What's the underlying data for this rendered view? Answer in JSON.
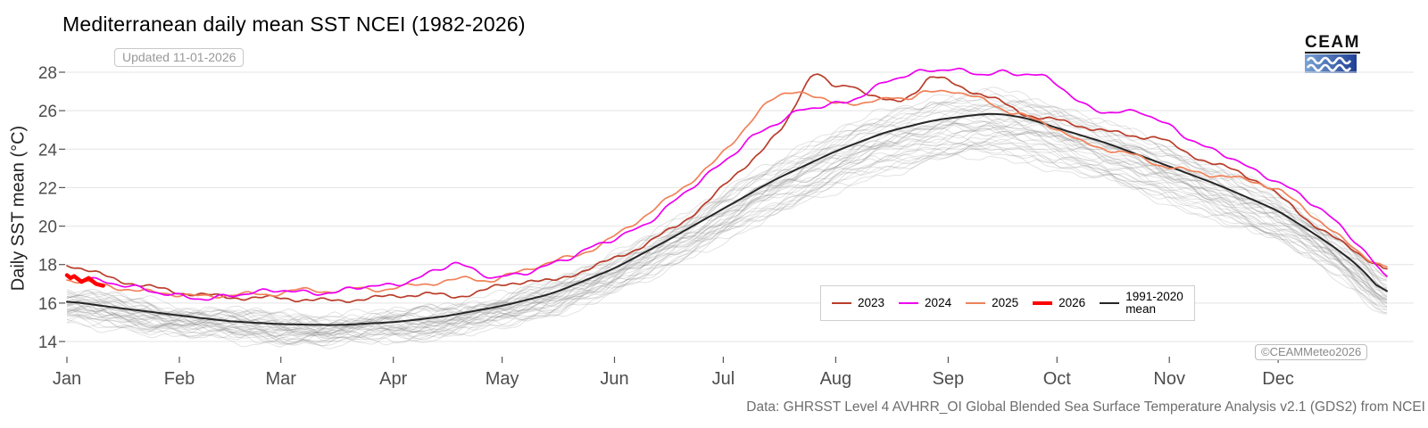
{
  "header": {
    "title": "Mediterranean daily mean SST NCEI (1982-2026)",
    "updated_badge": "Updated 11-01-2026",
    "logo_text": "CEAM"
  },
  "footer": {
    "caption": "Data: GHRSST Level 4 AVHRR_OI Global Blended Sea Surface Temperature Analysis v2.1 (GDS2) from NCEI",
    "copyright_badge": "©CEAMMeteo2026"
  },
  "colors": {
    "grid": "#e4e4e4",
    "tick": "#555555",
    "tick_label": "#4d4d4d",
    "background_years": "#808080",
    "logo_blue_left": "#7aa3d4",
    "logo_blue_right": "#1e3f96"
  },
  "chart_data": {
    "type": "line",
    "title": "Mediterranean daily mean SST NCEI (1982-2026)",
    "xlabel": "",
    "ylabel": "Daily SST mean (°C)",
    "ylim": [
      14,
      28
    ],
    "yticks": [
      14,
      16,
      18,
      20,
      22,
      24,
      26,
      28
    ],
    "x_unit": "day_of_year",
    "xlim_days": [
      1,
      365
    ],
    "grid": "horizontal-only",
    "legend_position": "inside-bottom-right",
    "xticks": {
      "labels": [
        "Jan",
        "Feb",
        "Mar",
        "Apr",
        "May",
        "Jun",
        "Jul",
        "Aug",
        "Sep",
        "Oct",
        "Nov",
        "Dec"
      ],
      "start_days": [
        1,
        32,
        60,
        91,
        121,
        152,
        182,
        213,
        244,
        274,
        305,
        335
      ]
    },
    "background_years": {
      "label": "individual years 1982-2022",
      "count": 41,
      "color": "#808080",
      "opacity": 0.22,
      "spread_below_degC": 2.2,
      "spread_above_degC": 1.3
    },
    "series": [
      {
        "name": "2023",
        "legend_label": "2023",
        "color": "#b93d2a",
        "width": 1.7,
        "points": [
          [
            1,
            18.05
          ],
          [
            8,
            17.6
          ],
          [
            15,
            17.2
          ],
          [
            22,
            16.9
          ],
          [
            32,
            16.55
          ],
          [
            45,
            16.3
          ],
          [
            60,
            16.25
          ],
          [
            75,
            16.1
          ],
          [
            91,
            16.35
          ],
          [
            100,
            16.5
          ],
          [
            108,
            16.3
          ],
          [
            121,
            16.9
          ],
          [
            128,
            17.2
          ],
          [
            135,
            17.1
          ],
          [
            142,
            17.6
          ],
          [
            152,
            18.3
          ],
          [
            160,
            19.0
          ],
          [
            170,
            20.1
          ],
          [
            178,
            21.3
          ],
          [
            186,
            22.8
          ],
          [
            193,
            24.0
          ],
          [
            199,
            25.2
          ],
          [
            204,
            27.2
          ],
          [
            207,
            28.1
          ],
          [
            210,
            27.6
          ],
          [
            213,
            27.1
          ],
          [
            217,
            27.4
          ],
          [
            221,
            27.0
          ],
          [
            225,
            26.6
          ],
          [
            230,
            26.4
          ],
          [
            235,
            27.0
          ],
          [
            239,
            27.8
          ],
          [
            243,
            27.6
          ],
          [
            248,
            27.2
          ],
          [
            254,
            26.8
          ],
          [
            258,
            26.5
          ],
          [
            264,
            25.9
          ],
          [
            270,
            25.6
          ],
          [
            274,
            25.5
          ],
          [
            281,
            25.2
          ],
          [
            288,
            24.9
          ],
          [
            295,
            24.7
          ],
          [
            302,
            24.6
          ],
          [
            309,
            23.9
          ],
          [
            316,
            23.3
          ],
          [
            323,
            22.9
          ],
          [
            330,
            22.3
          ],
          [
            337,
            21.3
          ],
          [
            344,
            20.2
          ],
          [
            351,
            19.3
          ],
          [
            358,
            18.5
          ],
          [
            365,
            17.7
          ]
        ]
      },
      {
        "name": "2024",
        "legend_label": "2024",
        "color": "#ee00ee",
        "width": 1.7,
        "points": [
          [
            1,
            17.45
          ],
          [
            8,
            17.2
          ],
          [
            15,
            17.0
          ],
          [
            25,
            16.6
          ],
          [
            32,
            16.35
          ],
          [
            40,
            16.2
          ],
          [
            48,
            16.45
          ],
          [
            60,
            16.7
          ],
          [
            68,
            16.5
          ],
          [
            75,
            16.55
          ],
          [
            83,
            16.9
          ],
          [
            91,
            16.9
          ],
          [
            98,
            17.3
          ],
          [
            104,
            17.8
          ],
          [
            108,
            18.15
          ],
          [
            113,
            17.7
          ],
          [
            119,
            17.3
          ],
          [
            126,
            17.5
          ],
          [
            133,
            17.9
          ],
          [
            140,
            18.4
          ],
          [
            147,
            19.0
          ],
          [
            154,
            19.5
          ],
          [
            160,
            20.0
          ],
          [
            168,
            21.2
          ],
          [
            175,
            22.3
          ],
          [
            182,
            23.3
          ],
          [
            189,
            24.5
          ],
          [
            196,
            25.3
          ],
          [
            203,
            26.0
          ],
          [
            210,
            26.3
          ],
          [
            216,
            26.4
          ],
          [
            222,
            27.0
          ],
          [
            228,
            27.6
          ],
          [
            233,
            27.9
          ],
          [
            238,
            28.05
          ],
          [
            244,
            28.2
          ],
          [
            249,
            28.0
          ],
          [
            254,
            27.9
          ],
          [
            258,
            28.0
          ],
          [
            263,
            27.9
          ],
          [
            267,
            27.95
          ],
          [
            271,
            27.7
          ],
          [
            275,
            27.3
          ],
          [
            279,
            26.6
          ],
          [
            283,
            26.1
          ],
          [
            287,
            25.95
          ],
          [
            293,
            25.9
          ],
          [
            297,
            26.0
          ],
          [
            301,
            25.6
          ],
          [
            305,
            25.2
          ],
          [
            310,
            24.6
          ],
          [
            316,
            24.0
          ],
          [
            322,
            23.6
          ],
          [
            328,
            22.9
          ],
          [
            334,
            22.4
          ],
          [
            340,
            21.75
          ],
          [
            346,
            21.0
          ],
          [
            351,
            20.2
          ],
          [
            356,
            19.3
          ],
          [
            360,
            18.4
          ],
          [
            363,
            17.7
          ],
          [
            365,
            17.3
          ]
        ]
      },
      {
        "name": "2025",
        "legend_label": "2025",
        "color": "#f0825a",
        "width": 1.7,
        "points": [
          [
            1,
            17.25
          ],
          [
            8,
            17.0
          ],
          [
            15,
            16.8
          ],
          [
            22,
            16.6
          ],
          [
            32,
            16.45
          ],
          [
            40,
            16.3
          ],
          [
            48,
            16.5
          ],
          [
            56,
            16.4
          ],
          [
            64,
            16.7
          ],
          [
            72,
            16.6
          ],
          [
            80,
            16.75
          ],
          [
            88,
            16.7
          ],
          [
            96,
            16.9
          ],
          [
            104,
            17.1
          ],
          [
            112,
            17.3
          ],
          [
            118,
            17.15
          ],
          [
            124,
            17.5
          ],
          [
            130,
            17.9
          ],
          [
            136,
            18.2
          ],
          [
            142,
            18.5
          ],
          [
            148,
            19.0
          ],
          [
            154,
            19.7
          ],
          [
            160,
            20.5
          ],
          [
            166,
            21.3
          ],
          [
            171,
            22.0
          ],
          [
            176,
            22.8
          ],
          [
            180,
            23.4
          ],
          [
            184,
            24.2
          ],
          [
            187,
            24.9
          ],
          [
            190,
            25.6
          ],
          [
            193,
            26.2
          ],
          [
            196,
            26.6
          ],
          [
            199,
            26.9
          ],
          [
            202,
            27.1
          ],
          [
            205,
            26.9
          ],
          [
            208,
            26.6
          ],
          [
            212,
            26.4
          ],
          [
            216,
            26.5
          ],
          [
            220,
            26.3
          ],
          [
            225,
            26.5
          ],
          [
            229,
            26.8
          ],
          [
            233,
            26.6
          ],
          [
            237,
            26.9
          ],
          [
            241,
            27.0
          ],
          [
            245,
            27.1
          ],
          [
            249,
            26.8
          ],
          [
            253,
            26.6
          ],
          [
            257,
            26.3
          ],
          [
            260,
            26.0
          ],
          [
            264,
            25.8
          ],
          [
            268,
            25.5
          ],
          [
            274,
            25.1
          ],
          [
            281,
            24.3
          ],
          [
            288,
            24.0
          ],
          [
            295,
            23.7
          ],
          [
            302,
            23.2
          ],
          [
            309,
            22.9
          ],
          [
            316,
            22.7
          ],
          [
            323,
            22.5
          ],
          [
            329,
            22.3
          ],
          [
            335,
            21.9
          ],
          [
            341,
            21.1
          ],
          [
            347,
            20.2
          ],
          [
            352,
            19.4
          ],
          [
            357,
            18.7
          ],
          [
            361,
            18.2
          ],
          [
            365,
            17.8
          ]
        ]
      },
      {
        "name": "2026",
        "legend_label": "2026",
        "color": "#ff0000",
        "width": 4.5,
        "points": [
          [
            1,
            17.45
          ],
          [
            2,
            17.3
          ],
          [
            3,
            17.4
          ],
          [
            4,
            17.25
          ],
          [
            5,
            17.1
          ],
          [
            6,
            17.2
          ],
          [
            7,
            17.3
          ],
          [
            8,
            17.15
          ],
          [
            9,
            17.0
          ],
          [
            10,
            16.95
          ],
          [
            11,
            16.9
          ]
        ]
      },
      {
        "name": "1991-2020 mean",
        "legend_label": "1991-2020\nmean",
        "color": "#262626",
        "width": 2.0,
        "is_mean": true,
        "points": [
          [
            1,
            16.1
          ],
          [
            15,
            15.75
          ],
          [
            32,
            15.35
          ],
          [
            46,
            15.05
          ],
          [
            60,
            14.9
          ],
          [
            75,
            14.85
          ],
          [
            91,
            15.0
          ],
          [
            105,
            15.3
          ],
          [
            121,
            15.85
          ],
          [
            135,
            16.5
          ],
          [
            152,
            17.8
          ],
          [
            166,
            19.2
          ],
          [
            182,
            20.9
          ],
          [
            196,
            22.4
          ],
          [
            213,
            23.9
          ],
          [
            227,
            24.9
          ],
          [
            240,
            25.5
          ],
          [
            252,
            25.8
          ],
          [
            258,
            25.85
          ],
          [
            266,
            25.6
          ],
          [
            274,
            25.1
          ],
          [
            288,
            24.3
          ],
          [
            305,
            23.1
          ],
          [
            319,
            22.1
          ],
          [
            335,
            20.8
          ],
          [
            345,
            19.6
          ],
          [
            352,
            18.7
          ],
          [
            358,
            17.8
          ],
          [
            365,
            16.3
          ]
        ]
      }
    ]
  }
}
